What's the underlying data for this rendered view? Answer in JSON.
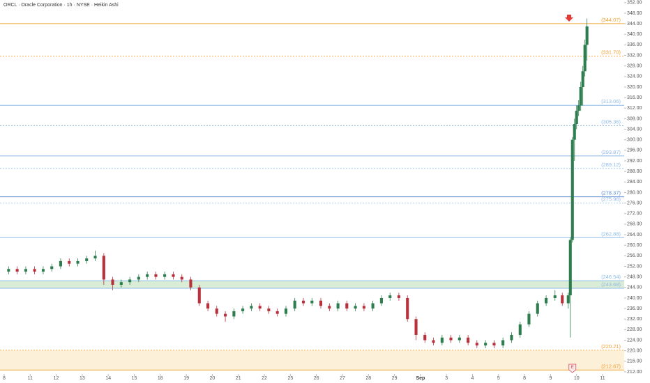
{
  "chart_data": {
    "type": "candlestick",
    "title": "ORCL · Oracle Corporation · 1h · NYSE · Heikin Ashi",
    "up_color": "#2e7d4f",
    "down_color": "#b8323d",
    "xlim": [
      -0.16,
      23.83
    ],
    "ylim": [
      211.2,
      353.0
    ],
    "xticks": [
      {
        "value": 0,
        "label": "8"
      },
      {
        "value": 1,
        "label": "11"
      },
      {
        "value": 2,
        "label": "12"
      },
      {
        "value": 3,
        "label": "13"
      },
      {
        "value": 4,
        "label": "14"
      },
      {
        "value": 5,
        "label": "15"
      },
      {
        "value": 6,
        "label": "18"
      },
      {
        "value": 7,
        "label": "19"
      },
      {
        "value": 8,
        "label": "20"
      },
      {
        "value": 9,
        "label": "21"
      },
      {
        "value": 10,
        "label": "22"
      },
      {
        "value": 11,
        "label": "25"
      },
      {
        "value": 12,
        "label": "26"
      },
      {
        "value": 13,
        "label": "27"
      },
      {
        "value": 14,
        "label": "28"
      },
      {
        "value": 15,
        "label": "29"
      },
      {
        "value": 16,
        "label": "Sep"
      },
      {
        "value": 17,
        "label": "3"
      },
      {
        "value": 18,
        "label": "4"
      },
      {
        "value": 19,
        "label": "5"
      },
      {
        "value": 20,
        "label": "8"
      },
      {
        "value": 21,
        "label": "9"
      },
      {
        "value": 22,
        "label": "10"
      },
      {
        "value": 23,
        "label": "11"
      }
    ],
    "yticks": [
      {
        "value": 212,
        "label": "212.00"
      },
      {
        "value": 216,
        "label": "216.00"
      },
      {
        "value": 220,
        "label": "220.00"
      },
      {
        "value": 224,
        "label": "224.00"
      },
      {
        "value": 228,
        "label": "228.00"
      },
      {
        "value": 232,
        "label": "232.00"
      },
      {
        "value": 236,
        "label": "236.00"
      },
      {
        "value": 240,
        "label": "240.00"
      },
      {
        "value": 244,
        "label": "244.00"
      },
      {
        "value": 248,
        "label": "248.00"
      },
      {
        "value": 252,
        "label": "252.00"
      },
      {
        "value": 256,
        "label": "256.00"
      },
      {
        "value": 260,
        "label": "260.00"
      },
      {
        "value": 264,
        "label": "264.00"
      },
      {
        "value": 268,
        "label": "268.00"
      },
      {
        "value": 272,
        "label": "272.00"
      },
      {
        "value": 276,
        "label": "276.00"
      },
      {
        "value": 280,
        "label": "280.00"
      },
      {
        "value": 284,
        "label": "284.00"
      },
      {
        "value": 288,
        "label": "288.00"
      },
      {
        "value": 292,
        "label": "292.00"
      },
      {
        "value": 296,
        "label": "296.00"
      },
      {
        "value": 300,
        "label": "300.00"
      },
      {
        "value": 304,
        "label": "304.00"
      },
      {
        "value": 308,
        "label": "308.00"
      },
      {
        "value": 312,
        "label": "312.00"
      },
      {
        "value": 316,
        "label": "316.00"
      },
      {
        "value": 320,
        "label": "320.00"
      },
      {
        "value": 324,
        "label": "324.00"
      },
      {
        "value": 328,
        "label": "328.00"
      },
      {
        "value": 332,
        "label": "332.00"
      },
      {
        "value": 336,
        "label": "336.00"
      },
      {
        "value": 340,
        "label": "340.00"
      },
      {
        "value": 344,
        "label": "344.00"
      },
      {
        "value": 348,
        "label": "348.00"
      },
      {
        "value": 352,
        "label": "352.00"
      }
    ],
    "levels": [
      {
        "value": 344.07,
        "label": "(344.07)",
        "color": "#f0a030",
        "style": "solid"
      },
      {
        "value": 331.7,
        "label": "(331.70)",
        "color": "#f0a030",
        "style": "dotted"
      },
      {
        "value": 313.06,
        "label": "(313.06)",
        "color": "#8dbbe8",
        "style": "solid"
      },
      {
        "value": 305.36,
        "label": "(305.36)",
        "color": "#8dbbe8",
        "style": "dotted"
      },
      {
        "value": 293.87,
        "label": "(293.87)",
        "color": "#8dbbe8",
        "style": "solid"
      },
      {
        "value": 289.12,
        "label": "(289.12)",
        "color": "#8dbbe8",
        "style": "dotted"
      },
      {
        "value": 278.37,
        "label": "(278.37)",
        "color": "#5b8ad6",
        "style": "solid"
      },
      {
        "value": 275.96,
        "label": "(275.96)",
        "color": "#8dbbe8",
        "style": "dotted"
      },
      {
        "value": 262.88,
        "label": "(262.88)",
        "color": "#8dbbe8",
        "style": "solid"
      },
      {
        "value": 246.54,
        "label": "(246.54)",
        "color": "#8dbbe8",
        "style": "solid"
      },
      {
        "value": 243.68,
        "label": "(243.68)",
        "color": "#8dbbe8",
        "style": "solid"
      },
      {
        "value": 220.21,
        "label": "(220.21)",
        "color": "#f0a030",
        "style": "dotted"
      },
      {
        "value": 212.67,
        "label": "(212.67)",
        "color": "#f0a030",
        "style": "solid"
      }
    ],
    "zones": [
      {
        "from": 243.68,
        "to": 246.54,
        "color": "#d9ecd5"
      },
      {
        "from": 212.67,
        "to": 220.21,
        "color": "#fdf0d8"
      }
    ],
    "earnings_marker": "E",
    "x": [
      0.17,
      0.5,
      0.83,
      1.17,
      1.5,
      1.83,
      2.17,
      2.5,
      2.83,
      3.17,
      3.5,
      3.83,
      4.17,
      4.5,
      4.83,
      5.17,
      5.5,
      5.83,
      6.17,
      6.5,
      6.83,
      7.17,
      7.5,
      7.83,
      8.17,
      8.5,
      8.83,
      9.17,
      9.5,
      9.83,
      10.17,
      10.5,
      10.83,
      11.17,
      11.5,
      11.83,
      12.17,
      12.5,
      12.83,
      13.17,
      13.5,
      13.83,
      14.17,
      14.5,
      14.83,
      15.17,
      15.5,
      15.83,
      16.17,
      16.5,
      16.83,
      17.17,
      17.5,
      17.83,
      18.17,
      18.5,
      18.83,
      19.17,
      19.5,
      19.83,
      20.17,
      20.5,
      20.83,
      21.17,
      21.45,
      21.68,
      21.76,
      21.84,
      21.92,
      22.0,
      22.08,
      22.16,
      22.24,
      22.32,
      22.4
    ],
    "open": [
      250,
      251,
      250,
      251,
      250,
      251,
      252,
      254,
      253,
      254,
      255,
      256,
      247,
      245,
      246,
      247,
      248,
      249,
      248,
      249,
      248,
      247,
      244,
      238,
      236,
      234,
      233,
      235,
      236,
      237,
      236,
      235,
      234,
      236,
      239,
      238,
      239,
      237,
      236,
      238,
      236,
      237,
      236,
      238,
      240,
      241,
      240,
      232,
      226,
      224,
      223,
      225,
      224,
      225,
      223,
      222,
      223,
      222,
      224,
      226,
      230,
      234,
      238,
      240,
      241,
      238,
      241,
      262,
      300,
      306,
      311,
      313,
      320,
      326,
      336
    ],
    "close": [
      251,
      250,
      251,
      250,
      251,
      252,
      254,
      253,
      254,
      255,
      256,
      247,
      245,
      246,
      247,
      248,
      249,
      248,
      249,
      248,
      247,
      244,
      238,
      236,
      234,
      233,
      235,
      236,
      237,
      236,
      235,
      234,
      236,
      239,
      238,
      239,
      237,
      236,
      238,
      236,
      237,
      236,
      238,
      240,
      241,
      240,
      232,
      226,
      224,
      223,
      225,
      224,
      225,
      223,
      222,
      223,
      222,
      224,
      226,
      230,
      234,
      238,
      240,
      241,
      238,
      241,
      262,
      300,
      306,
      311,
      313,
      320,
      326,
      336,
      343
    ],
    "high": [
      252,
      252,
      252,
      252,
      252,
      253,
      255,
      255,
      255,
      256,
      258,
      257,
      248,
      247,
      248,
      249,
      250,
      250,
      250,
      250,
      249,
      248,
      245,
      239,
      237,
      235,
      236,
      237,
      238,
      238,
      237,
      236,
      237,
      240,
      240,
      240,
      240,
      238,
      239,
      239,
      238,
      238,
      239,
      241,
      242,
      242,
      241,
      233,
      227,
      225,
      226,
      226,
      226,
      226,
      224,
      224,
      224,
      225,
      227,
      231,
      235,
      239,
      241,
      243,
      242,
      242,
      263,
      301,
      308,
      313,
      315,
      322,
      328,
      338,
      346
    ],
    "low": [
      249,
      249,
      249,
      249,
      249,
      250,
      251,
      252,
      252,
      253,
      254,
      245,
      243,
      244,
      245,
      246,
      247,
      247,
      247,
      247,
      246,
      243,
      237,
      235,
      233,
      231,
      232,
      234,
      235,
      235,
      234,
      233,
      233,
      235,
      237,
      237,
      236,
      235,
      235,
      235,
      235,
      235,
      235,
      237,
      239,
      239,
      231,
      224,
      223,
      222,
      222,
      223,
      223,
      222,
      221,
      221,
      221,
      221,
      223,
      225,
      229,
      233,
      237,
      239,
      237,
      236,
      225,
      261,
      292,
      304,
      309,
      311,
      313,
      324,
      330
    ]
  }
}
